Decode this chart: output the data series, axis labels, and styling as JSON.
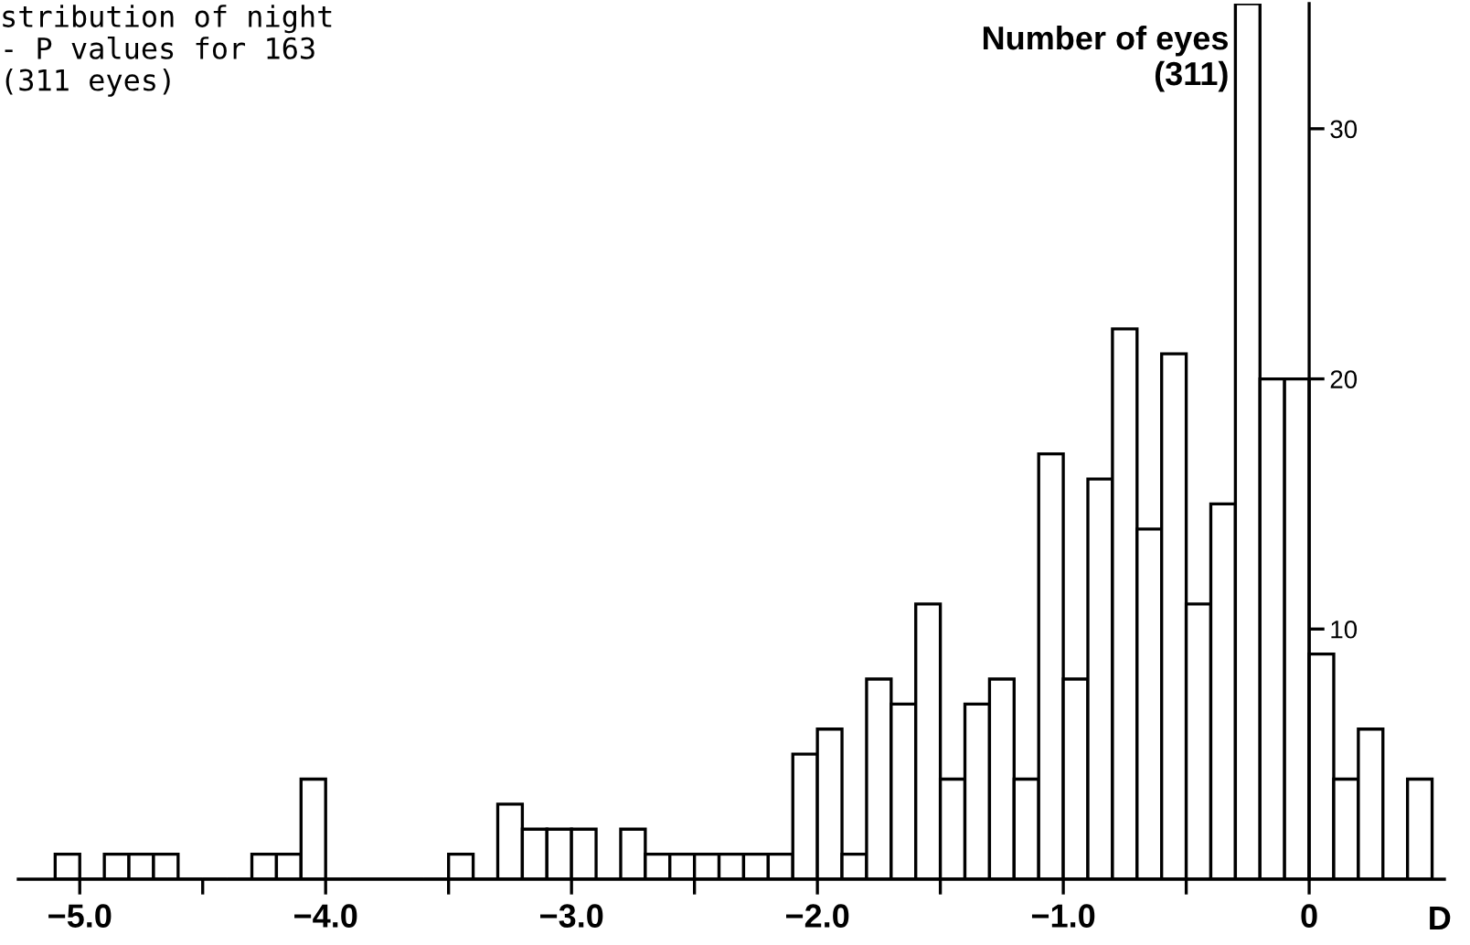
{
  "chart_data": {
    "type": "histogram",
    "title": "stribution of night\n- P values for 163\n(311 eyes)",
    "ylabel": "Number of eyes\n(311)",
    "xlabel": "D",
    "bins": [
      -5.1,
      -5.0,
      -4.9,
      -4.8,
      -4.7,
      -4.6,
      -4.5,
      -4.4,
      -4.3,
      -4.2,
      -4.1,
      -4.0,
      -3.9,
      -3.8,
      -3.7,
      -3.6,
      -3.5,
      -3.4,
      -3.3,
      -3.2,
      -3.1,
      -3.0,
      -2.9,
      -2.8,
      -2.7,
      -2.6,
      -2.5,
      -2.4,
      -2.3,
      -2.2,
      -2.1,
      -2.0,
      -1.9,
      -1.8,
      -1.7,
      -1.6,
      -1.5,
      -1.4,
      -1.3,
      -1.2,
      -1.1,
      -1.0,
      -0.9,
      -0.8,
      -0.7,
      -0.6,
      -0.5,
      -0.4,
      -0.3,
      -0.2,
      -0.1,
      0.0,
      0.1,
      0.2,
      0.3,
      0.4,
      0.5
    ],
    "values": [
      1,
      0,
      1,
      1,
      1,
      0,
      0,
      0,
      1,
      1,
      4,
      0,
      0,
      0,
      0,
      0,
      1,
      0,
      3,
      2,
      2,
      2,
      0,
      2,
      1,
      1,
      1,
      1,
      1,
      1,
      5,
      6,
      1,
      8,
      7,
      11,
      4,
      7,
      8,
      4,
      17,
      8,
      16,
      22,
      14,
      21,
      11,
      15,
      35,
      20,
      20,
      9,
      4,
      6,
      0,
      4
    ],
    "color": "#ffffff",
    "xlim": [
      -5.25,
      0.55
    ],
    "ylim": [
      0,
      35
    ],
    "xticks": [
      {
        "value": -5.0,
        "label": "−5.0"
      },
      {
        "value": -4.5,
        "label": null
      },
      {
        "value": -4.0,
        "label": "−4.0"
      },
      {
        "value": -3.5,
        "label": null
      },
      {
        "value": -3.0,
        "label": "−3.0"
      },
      {
        "value": -2.5,
        "label": null
      },
      {
        "value": -2.0,
        "label": "−2.0"
      },
      {
        "value": -1.5,
        "label": null
      },
      {
        "value": -1.0,
        "label": "−1.0"
      },
      {
        "value": -0.5,
        "label": null
      },
      {
        "value": 0,
        "label": "0"
      }
    ],
    "yticks": [
      10,
      20,
      30
    ],
    "grid": false,
    "legend": false
  }
}
